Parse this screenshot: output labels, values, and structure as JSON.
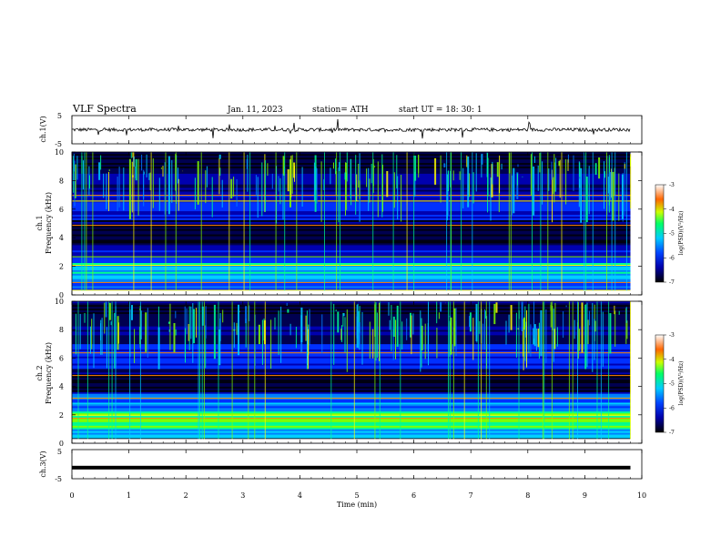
{
  "header": {
    "title": "VLF  Spectra",
    "date": "Jan.  11,  2023",
    "station": "station= ATH",
    "start": "start  UT  =    18: 30: 1"
  },
  "colors": {
    "waveform": "#000000",
    "axis": "#000000",
    "spectro_low": "#000033",
    "spectro_mid": "#00ccff",
    "spectro_high": "#ff0000"
  },
  "chart_data": [
    {
      "type": "line",
      "name": "ch1-waveform",
      "ylabel": "ch.1(V)",
      "ylim": [
        -5,
        5
      ],
      "y_ticks": [
        "5",
        "-5"
      ],
      "baseline_v": 0,
      "amplitude_v": 1.2,
      "xlim": [
        0,
        10
      ],
      "data_end_min": 9.8
    },
    {
      "type": "heatmap",
      "name": "ch1-spectrogram",
      "ylabel": "ch.1\nFrequency  (kHz)",
      "ylabel_lines": [
        "ch.1",
        "Frequency  (kHz)"
      ],
      "ylim": [
        0,
        10
      ],
      "y_ticks": [
        "0",
        "2",
        "4",
        "6",
        "8",
        "10"
      ],
      "xlim": [
        0,
        10
      ],
      "data_end_min": 9.8,
      "colorbar": {
        "label": "log(PSD)(V²/Hz)",
        "range": [
          -7,
          -3
        ],
        "ticks": [
          "-3",
          "-4",
          "-5",
          "-6",
          "-7"
        ]
      }
    },
    {
      "type": "heatmap",
      "name": "ch2-spectrogram",
      "ylabel": "ch.2\nFrequency  (kHz)",
      "ylabel_lines": [
        "ch.2",
        "Frequency  (kHz)"
      ],
      "ylim": [
        0,
        10
      ],
      "y_ticks": [
        "0",
        "2",
        "4",
        "6",
        "8",
        "10"
      ],
      "xlim": [
        0,
        10
      ],
      "data_end_min": 9.8,
      "colorbar": {
        "label": "log(PSD)(V²/Hz)",
        "range": [
          -7,
          -3
        ],
        "ticks": [
          "-3",
          "-4",
          "-5",
          "-6",
          "-7"
        ]
      }
    },
    {
      "type": "line",
      "name": "ch3-waveform",
      "ylabel": "ch.3(V)",
      "ylim": [
        -5,
        5
      ],
      "y_ticks": [
        "5",
        "-5"
      ],
      "baseline_v": -1.2,
      "xlim": [
        0,
        10
      ],
      "data_end_min": 9.8
    }
  ],
  "x_axis": {
    "label": "Time  (min)",
    "ticks": [
      "0",
      "1",
      "2",
      "3",
      "4",
      "5",
      "6",
      "7",
      "8",
      "9",
      "10"
    ]
  }
}
